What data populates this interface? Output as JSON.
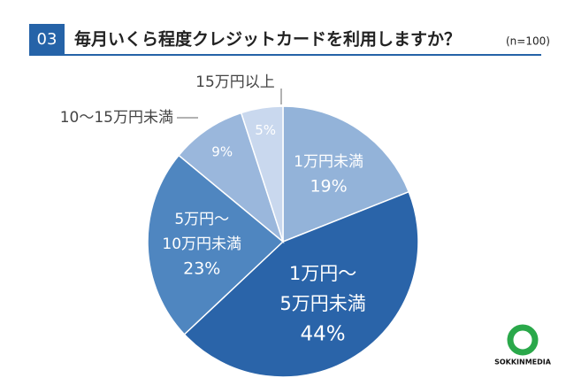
{
  "chart_data": {
    "type": "pie",
    "badge": "03",
    "title": "毎月いくら程度クレジットカードを利用しますか？",
    "subtitle": "(n=100)",
    "categories": [
      [
        "1万円未満"
      ],
      [
        "1万円〜",
        "5万円未満"
      ],
      [
        "5万円〜",
        "10万円未満"
      ],
      [
        "10〜15万円未満"
      ],
      [
        "15万円以上"
      ]
    ],
    "values": [
      19,
      44,
      23,
      9,
      5
    ],
    "value_labels": [
      "19%",
      "44%",
      "23%",
      "9%",
      "5%"
    ],
    "colors": [
      "#93b3d9",
      "#2a64a9",
      "#4f86c0",
      "#9ab7dc",
      "#c9d8ee"
    ],
    "logo": "SOKKINMEDIA"
  }
}
